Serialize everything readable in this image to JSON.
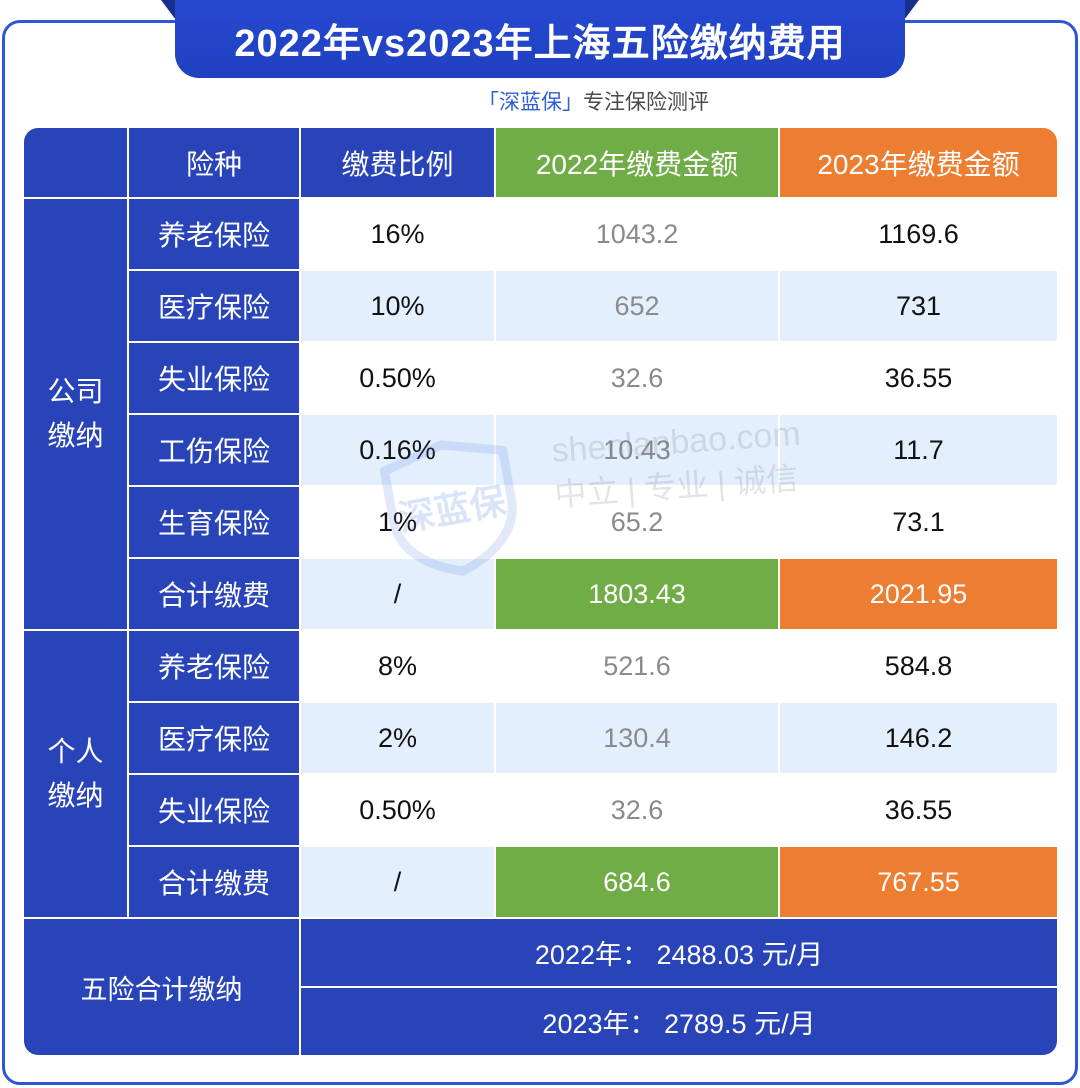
{
  "title": "2022年vs2023年上海五险缴纳费用",
  "subtitle": {
    "brand": "「深蓝保」",
    "tagline": "专注保险测评"
  },
  "table": {
    "headers": {
      "type": "险种",
      "rate": "缴费比例",
      "amount_2022": "2022年缴费金额",
      "amount_2023": "2023年缴费金额"
    },
    "groups": [
      {
        "label": [
          "公司",
          "缴纳"
        ],
        "rows": [
          {
            "type": "养老保险",
            "rate": "16%",
            "amount_2022": "1043.2",
            "amount_2023": "1169.6"
          },
          {
            "type": "医疗保险",
            "rate": "10%",
            "amount_2022": "652",
            "amount_2023": "731"
          },
          {
            "type": "失业保险",
            "rate": "0.50%",
            "amount_2022": "32.6",
            "amount_2023": "36.55"
          },
          {
            "type": "工伤保险",
            "rate": "0.16%",
            "amount_2022": "10.43",
            "amount_2023": "11.7"
          },
          {
            "type": "生育保险",
            "rate": "1%",
            "amount_2022": "65.2",
            "amount_2023": "73.1"
          }
        ],
        "total": {
          "type": "合计缴费",
          "rate": "/",
          "amount_2022": "1803.43",
          "amount_2023": "2021.95"
        }
      },
      {
        "label": [
          "个人",
          "缴纳"
        ],
        "rows": [
          {
            "type": "养老保险",
            "rate": "8%",
            "amount_2022": "521.6",
            "amount_2023": "584.8"
          },
          {
            "type": "医疗保险",
            "rate": "2%",
            "amount_2022": "130.4",
            "amount_2023": "146.2"
          },
          {
            "type": "失业保险",
            "rate": "0.50%",
            "amount_2022": "32.6",
            "amount_2023": "36.55"
          }
        ],
        "total": {
          "type": "合计缴费",
          "rate": "/",
          "amount_2022": "684.6",
          "amount_2023": "767.55"
        }
      }
    ],
    "footer": {
      "label": "五险合计缴纳",
      "summary_2022": "2022年： 2488.03 元/月",
      "summary_2023": "2023年： 2789.5 元/月"
    }
  },
  "watermark": {
    "logo_text": "深蓝保",
    "domain": "shenlanbao.com",
    "slogan": "中立 | 专业 | 诚信"
  },
  "colors": {
    "primary_blue": "#2944b8",
    "row_alt": "#e3effd",
    "green_2022": "#70ad47",
    "orange_2023": "#ed7d31",
    "frame": "#2e57d8"
  }
}
